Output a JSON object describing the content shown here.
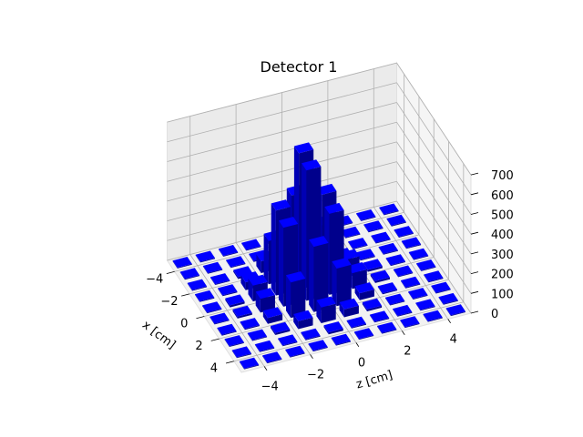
{
  "chart_data": {
    "type": "bar3d",
    "title": "Detector 1",
    "xlabel": "x [cm]",
    "ylabel": "z [cm]",
    "zlabel": "",
    "xlim": [
      -5,
      5
    ],
    "ylim": [
      -5,
      5
    ],
    "zlim": [
      0,
      700
    ],
    "x_ticks": [
      -4,
      -2,
      0,
      2,
      4
    ],
    "y_ticks": [
      -4,
      -2,
      0,
      2,
      4
    ],
    "z_ticks": [
      0,
      100,
      200,
      300,
      400,
      500,
      600,
      700
    ],
    "grid": true,
    "bar_color": "#0000ff",
    "bins": [
      -4.5,
      -3.5,
      -2.5,
      -1.5,
      -0.5,
      0.5,
      1.5,
      2.5,
      3.5,
      4.5
    ],
    "note_values": "counts per bin (rows = x bins, cols = z bins)",
    "counts": [
      [
        0,
        0,
        0,
        0,
        0,
        0,
        0,
        0,
        0,
        0
      ],
      [
        0,
        0,
        0,
        5,
        10,
        5,
        0,
        0,
        0,
        0
      ],
      [
        0,
        0,
        10,
        60,
        120,
        60,
        10,
        0,
        0,
        0
      ],
      [
        0,
        5,
        40,
        220,
        420,
        230,
        40,
        5,
        0,
        0
      ],
      [
        0,
        10,
        80,
        430,
        690,
        450,
        90,
        10,
        0,
        0
      ],
      [
        0,
        10,
        70,
        400,
        660,
        410,
        80,
        10,
        0,
        0
      ],
      [
        0,
        5,
        30,
        180,
        330,
        190,
        35,
        5,
        0,
        0
      ],
      [
        0,
        0,
        10,
        40,
        80,
        40,
        10,
        0,
        0,
        0
      ],
      [
        0,
        0,
        0,
        5,
        10,
        5,
        0,
        0,
        0,
        0
      ],
      [
        0,
        0,
        0,
        0,
        0,
        0,
        0,
        0,
        0,
        0
      ]
    ]
  }
}
